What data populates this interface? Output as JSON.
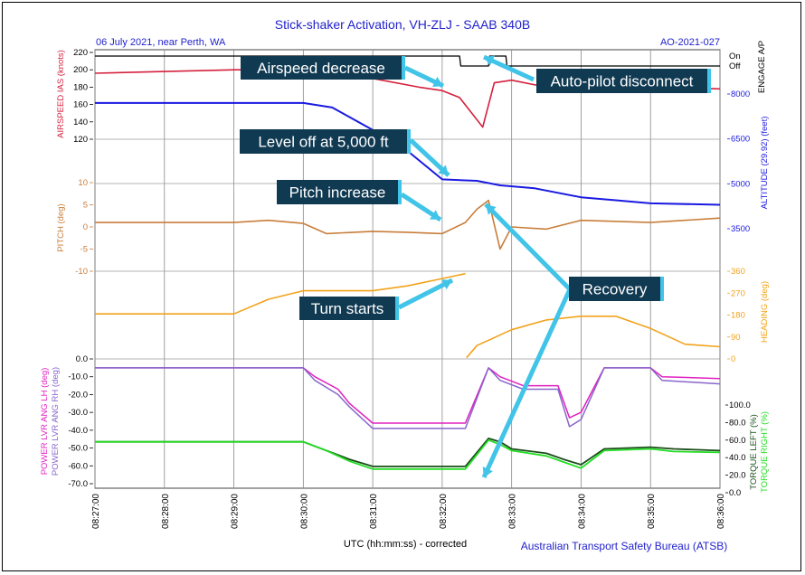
{
  "title": "Stick-shaker Activation, VH-ZLJ - SAAB 340B",
  "subtitle_left": "06 July 2021, near Perth, WA",
  "subtitle_right": "AO-2021-027",
  "x_axis_label": "UTC (hh:mm:ss) - corrected",
  "credit": "Australian Transport Safety Bureau (ATSB)",
  "colors": {
    "title": "#2222cc",
    "airspeed": "#d4213d",
    "altitude": "#1a1ae0",
    "pitch": "#c87d3a",
    "heading": "#f2a21a",
    "power_lh": "#e020c0",
    "power_rh": "#8866cc",
    "torque_left": "#1a4d1a",
    "torque_right": "#22dd22",
    "autopilot": "#000000",
    "annotation_box": "#103a52",
    "arrow": "#41c4e8"
  },
  "annotations": [
    {
      "key": "airspeed",
      "text": "Airspeed decrease"
    },
    {
      "key": "autopilot",
      "text": "Auto-pilot disconnect"
    },
    {
      "key": "leveloff",
      "text": "Level off at 5,000 ft"
    },
    {
      "key": "pitch",
      "text": "Pitch increase"
    },
    {
      "key": "recovery",
      "text": "Recovery"
    },
    {
      "key": "turn",
      "text": "Turn starts"
    }
  ],
  "chart_data": {
    "type": "line",
    "x_ticks": [
      "08:27:00",
      "08:28:00",
      "08:29:00",
      "08:30:00",
      "08:31:00",
      "08:32:00",
      "08:33:00",
      "08:34:00",
      "08:35:00",
      "08:36:00"
    ],
    "x_range": [
      "08:27:00",
      "08:36:00"
    ],
    "panels": [
      {
        "name": "airspeed",
        "axis_left": {
          "label": "AIRSPEED IAS (knots)",
          "ticks": [
            "220",
            "200",
            "180",
            "160",
            "140",
            "120"
          ],
          "range": [
            120,
            220
          ]
        },
        "axis_right": {
          "label": "ENGAGE A/P",
          "ticks": [
            "On",
            "Off"
          ]
        },
        "series": [
          {
            "name": "AIRSPEED IAS (knots)",
            "x": [
              "08:27:00",
              "08:28:00",
              "08:29:00",
              "08:30:00",
              "08:30:40",
              "08:31:00",
              "08:31:40",
              "08:32:00",
              "08:32:15",
              "08:32:35",
              "08:32:45",
              "08:33:00",
              "08:33:30",
              "08:34:00",
              "08:35:00",
              "08:36:00"
            ],
            "y": [
              196,
              198,
              200,
              200,
              199,
              190,
              180,
              176,
              168,
              134,
              185,
              188,
              180,
              176,
              180,
              178
            ]
          },
          {
            "name": "ENGAGE A/P",
            "x": [
              "08:27:00",
              "08:32:15",
              "08:32:16",
              "08:32:40",
              "08:32:41",
              "08:32:55",
              "08:32:56",
              "08:36:00"
            ],
            "y": [
              "On",
              "On",
              "Off",
              "Off",
              "On",
              "On",
              "Off",
              "Off"
            ]
          }
        ]
      },
      {
        "name": "altitude",
        "axis_right": {
          "label": "ALTITUDE (29.92) (feet)",
          "ticks": [
            "8000",
            "6500",
            "5000",
            "3500"
          ],
          "range": [
            3500,
            8000
          ]
        },
        "series": [
          {
            "name": "ALTITUDE (29.92) (feet)",
            "x": [
              "08:27:00",
              "08:30:00",
              "08:30:25",
              "08:31:00",
              "08:31:30",
              "08:32:00",
              "08:32:30",
              "08:32:50",
              "08:33:20",
              "08:34:00",
              "08:34:30",
              "08:35:00",
              "08:36:00"
            ],
            "y": [
              7700,
              7700,
              7550,
              6800,
              6100,
              5150,
              5100,
              4950,
              4850,
              4550,
              4450,
              4350,
              4300
            ]
          }
        ]
      },
      {
        "name": "pitch",
        "axis_left": {
          "label": "PITCH (deg)",
          "ticks": [
            "10",
            "5",
            "0",
            "-5",
            "-10"
          ],
          "range": [
            -10,
            10
          ]
        },
        "series": [
          {
            "name": "PITCH (deg)",
            "x": [
              "08:27:00",
              "08:28:00",
              "08:29:00",
              "08:29:30",
              "08:30:00",
              "08:30:20",
              "08:31:00",
              "08:31:30",
              "08:32:00",
              "08:32:20",
              "08:32:30",
              "08:32:40",
              "08:32:50",
              "08:33:00",
              "08:33:30",
              "08:34:00",
              "08:35:00",
              "08:36:00"
            ],
            "y": [
              1,
              1,
              1,
              1.5,
              0.8,
              -1.5,
              -1,
              -1.2,
              -1.5,
              1,
              4,
              6,
              -5,
              0,
              -0.5,
              1.5,
              1,
              2
            ]
          }
        ]
      },
      {
        "name": "heading",
        "axis_right": {
          "label": "HEADING (deg)",
          "ticks": [
            "360",
            "270",
            "180",
            "90",
            "0"
          ],
          "range": [
            0,
            360
          ]
        },
        "series": [
          {
            "name": "HEADING (deg)",
            "x": [
              "08:27:00",
              "08:29:00",
              "08:29:30",
              "08:30:00",
              "08:31:00",
              "08:31:30",
              "08:32:00",
              "08:32:20",
              "08:32:21",
              "08:32:30",
              "08:33:00",
              "08:33:30",
              "08:34:00",
              "08:34:30",
              "08:35:00",
              "08:35:30",
              "08:36:00"
            ],
            "y": [
              185,
              185,
              245,
              280,
              280,
              300,
              330,
              350,
              5,
              55,
              120,
              160,
              175,
              175,
              125,
              60,
              50
            ]
          }
        ]
      },
      {
        "name": "power_torque",
        "axis_left": {
          "label": "POWER LVR ANG LH (deg) / POWER LVR ANG RH (deg)",
          "ticks": [
            "0.0",
            "-10.0",
            "-20.0",
            "-30.0",
            "-40.0",
            "-50.0",
            "-60.0",
            "-70.0"
          ],
          "range": [
            -70,
            0
          ]
        },
        "axis_right": {
          "label": "TORQUE LEFT (%) / TORQUE RIGHT (%)",
          "ticks": [
            "100.0",
            "80.0",
            "60.0",
            "40.0",
            "20.0",
            "0.0"
          ],
          "range": [
            0,
            100
          ]
        },
        "series": [
          {
            "name": "POWER LVR ANG LH (deg)",
            "axis": "left",
            "x": [
              "08:27:00",
              "08:30:00",
              "08:30:10",
              "08:30:30",
              "08:30:40",
              "08:31:00",
              "08:31:30",
              "08:32:00",
              "08:32:20",
              "08:32:40",
              "08:32:50",
              "08:33:10",
              "08:33:40",
              "08:33:50",
              "08:34:00",
              "08:34:20",
              "08:35:00",
              "08:35:10",
              "08:36:00"
            ],
            "y": [
              -5,
              -5,
              -10,
              -17,
              -25,
              -36,
              -36,
              -36,
              -36,
              -5,
              -10,
              -15,
              -15,
              -33,
              -30,
              -5,
              -5,
              -10,
              -11
            ]
          },
          {
            "name": "POWER LVR ANG RH (deg)",
            "axis": "left",
            "x": [
              "08:27:00",
              "08:30:00",
              "08:30:10",
              "08:30:30",
              "08:30:40",
              "08:31:00",
              "08:31:30",
              "08:32:00",
              "08:32:20",
              "08:32:40",
              "08:32:50",
              "08:33:10",
              "08:33:40",
              "08:33:50",
              "08:34:00",
              "08:34:20",
              "08:35:00",
              "08:35:10",
              "08:36:00"
            ],
            "y": [
              -5,
              -5,
              -12,
              -20,
              -27,
              -39,
              -39,
              -39,
              -39,
              -5,
              -12,
              -17,
              -17,
              -38,
              -34,
              -5,
              -5,
              -12,
              -14
            ]
          },
          {
            "name": "TORQUE LEFT (%)",
            "axis": "right",
            "x": [
              "08:27:00",
              "08:30:00",
              "08:30:20",
              "08:30:40",
              "08:31:00",
              "08:31:30",
              "08:32:00",
              "08:32:20",
              "08:32:40",
              "08:32:50",
              "08:33:00",
              "08:33:30",
              "08:33:45",
              "08:34:00",
              "08:34:20",
              "08:35:00",
              "08:35:20",
              "08:36:00"
            ],
            "y": [
              58,
              58,
              48,
              38,
              30,
              30,
              30,
              30,
              62,
              58,
              50,
              45,
              38,
              32,
              50,
              52,
              50,
              48
            ]
          },
          {
            "name": "TORQUE RIGHT (%)",
            "axis": "right",
            "x": [
              "08:27:00",
              "08:30:00",
              "08:30:20",
              "08:30:40",
              "08:31:00",
              "08:31:30",
              "08:32:00",
              "08:32:20",
              "08:32:40",
              "08:32:50",
              "08:33:00",
              "08:33:30",
              "08:33:45",
              "08:34:00",
              "08:34:20",
              "08:35:00",
              "08:35:20",
              "08:36:00"
            ],
            "y": [
              58,
              58,
              48,
              36,
              27,
              27,
              27,
              27,
              60,
              55,
              48,
              42,
              35,
              28,
              48,
              50,
              47,
              46
            ]
          }
        ]
      }
    ]
  }
}
